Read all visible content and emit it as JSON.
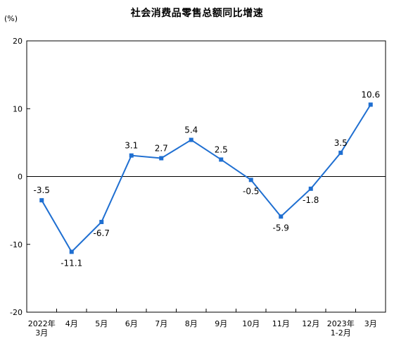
{
  "chart_data": {
    "type": "line",
    "title": "社会消费品零售总额同比增速",
    "unit": "(%)",
    "categories": [
      [
        "2022年",
        "3月"
      ],
      [
        "4月"
      ],
      [
        "5月"
      ],
      [
        "6月"
      ],
      [
        "7月"
      ],
      [
        "8月"
      ],
      [
        "9月"
      ],
      [
        "10月"
      ],
      [
        "11月"
      ],
      [
        "12月"
      ],
      [
        "2023年",
        "1-2月"
      ],
      [
        "3月"
      ]
    ],
    "values": [
      -3.5,
      -11.1,
      -6.7,
      3.1,
      2.7,
      5.4,
      2.5,
      -0.5,
      -5.9,
      -1.8,
      3.5,
      10.6
    ],
    "value_labels": [
      "-3.5",
      "-11.1",
      "-6.7",
      "3.1",
      "2.7",
      "5.4",
      "2.5",
      "-0.5",
      "-5.9",
      "-1.8",
      "3.5",
      "10.6"
    ],
    "label_position": [
      "above",
      "below",
      "below",
      "above",
      "above",
      "above",
      "above",
      "below",
      "below",
      "below",
      "above",
      "above"
    ],
    "ylim": [
      -20,
      20
    ],
    "yticks": [
      20,
      10,
      0,
      -10,
      -20
    ],
    "grid": false,
    "legend": "none",
    "line_color": "#1f6fd1",
    "marker": "square"
  }
}
